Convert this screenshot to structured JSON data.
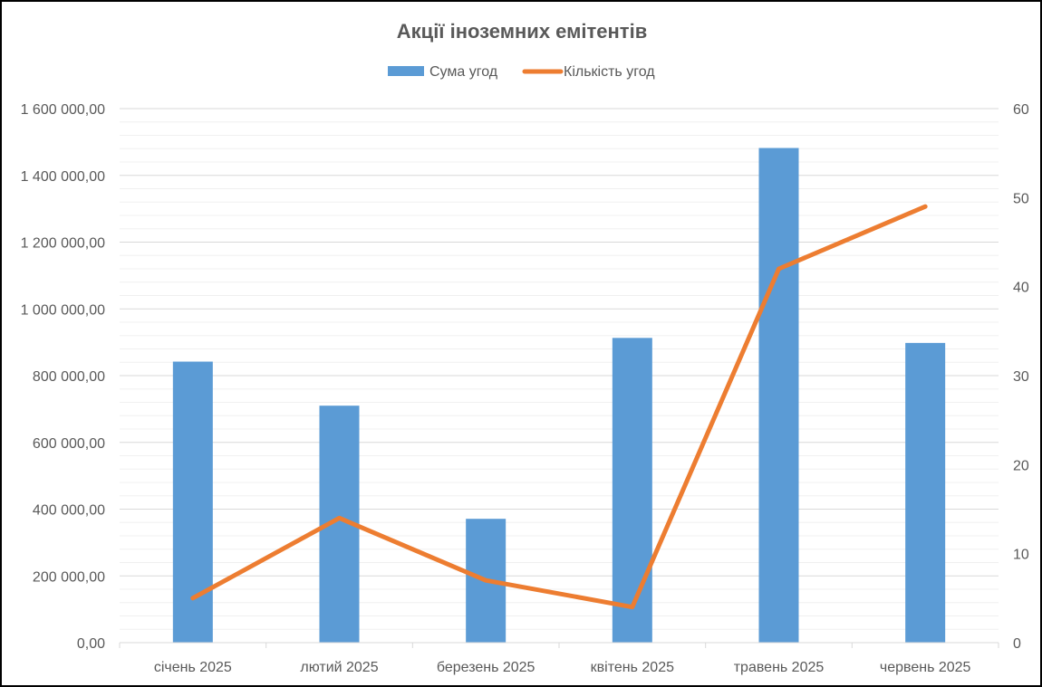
{
  "chart_data": {
    "type": "bar",
    "title": "Акції іноземних емітентів",
    "categories": [
      "січень 2025",
      "лютий 2025",
      "березень 2025",
      "квітень 2025",
      "травень 2025",
      "червень 2025"
    ],
    "series": [
      {
        "name": "Сума угод",
        "type": "bar",
        "axis": "left",
        "color": "#5B9BD5",
        "values": [
          842000,
          710000,
          371000,
          913000,
          1482000,
          898000
        ]
      },
      {
        "name": "Кількість угод",
        "type": "line",
        "axis": "right",
        "color": "#ED7D31",
        "values": [
          5,
          14,
          7,
          4,
          42,
          49
        ]
      }
    ],
    "y_left": {
      "min": 0,
      "max": 1600000,
      "major_step": 200000,
      "minor_step": 40000,
      "tick_labels": [
        "0,00",
        "200 000,00",
        "400 000,00",
        "600 000,00",
        "800 000,00",
        "1 000 000,00",
        "1 200 000,00",
        "1 400 000,00",
        "1 600 000,00"
      ]
    },
    "y_right": {
      "min": 0,
      "max": 60,
      "major_step": 10,
      "tick_labels": [
        "0",
        "10",
        "20",
        "30",
        "40",
        "50",
        "60"
      ]
    },
    "grid": true,
    "legend_position": "top"
  }
}
